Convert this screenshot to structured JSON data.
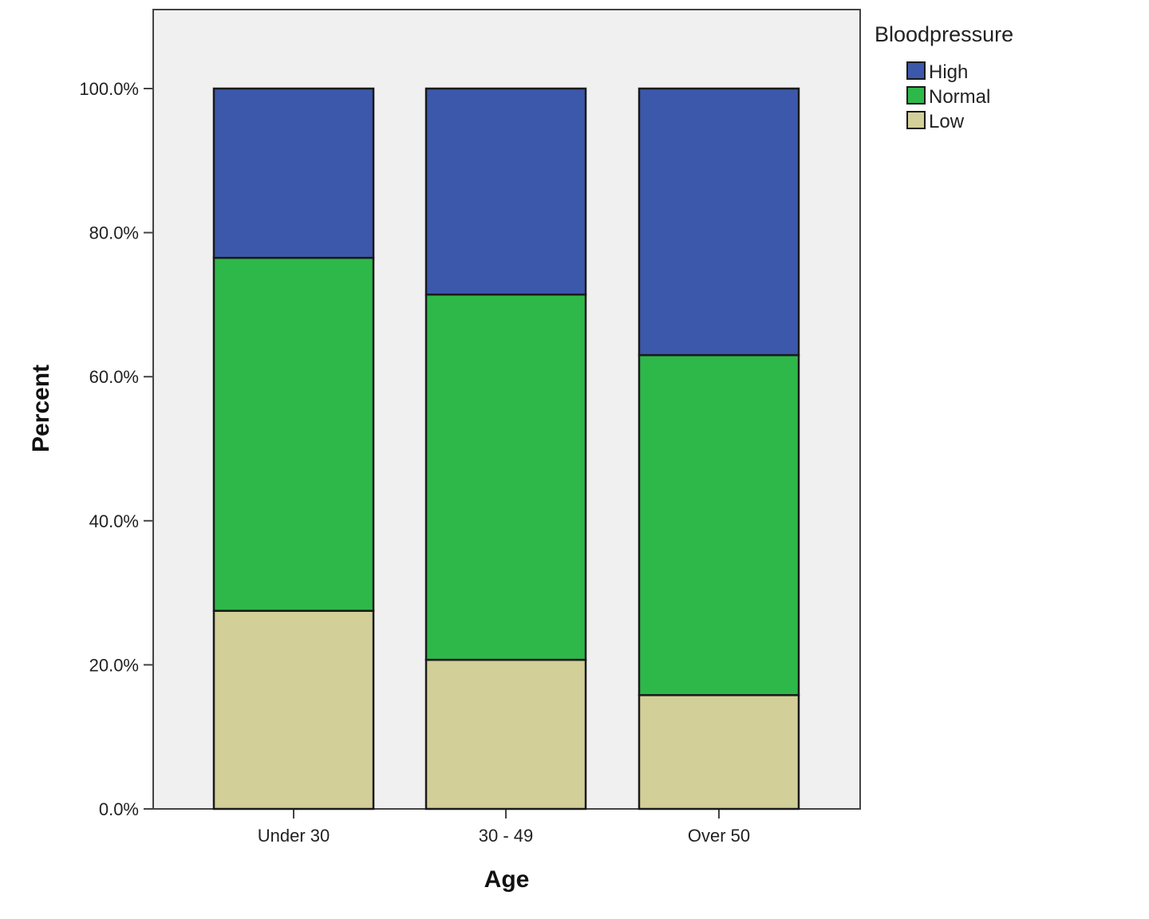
{
  "chart_data": {
    "type": "bar",
    "stacked": true,
    "categories": [
      "Under 30",
      "30 - 49",
      "Over 50"
    ],
    "series": [
      {
        "name": "Low",
        "values": [
          27.5,
          20.7,
          15.8
        ],
        "color": "#d3cf98"
      },
      {
        "name": "Normal",
        "values": [
          49.0,
          50.7,
          47.2
        ],
        "color": "#2eb84a"
      },
      {
        "name": "High",
        "values": [
          23.5,
          28.6,
          37.0
        ],
        "color": "#3c58ab"
      }
    ],
    "xlabel": "Age",
    "ylabel": "Percent",
    "ylim": [
      0,
      100
    ],
    "yticks": [
      "0.0%",
      "20.0%",
      "40.0%",
      "60.0%",
      "80.0%",
      "100.0%"
    ],
    "ytick_values": [
      0,
      20,
      40,
      60,
      80,
      100
    ],
    "legend": {
      "title": "Bloodpressure",
      "placement": "top-right, outside plot",
      "order": [
        "High",
        "Normal",
        "Low"
      ]
    },
    "plot_background": "#f0f0f0",
    "bar_outline": "#1a1a1a",
    "grid": false
  }
}
